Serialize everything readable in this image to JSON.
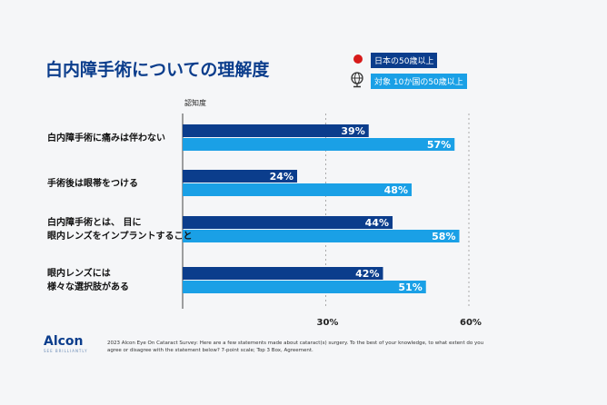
{
  "chart_data": {
    "type": "bar",
    "orientation": "horizontal",
    "title": "白内障手術についての理解度",
    "xlabel": "認知度",
    "xlim": [
      0,
      60
    ],
    "ticks": [
      "30%",
      "60%"
    ],
    "tick_values": [
      30,
      60
    ],
    "grid": "dashed at ticks",
    "categories": [
      "白内障手術に痛みは伴わない",
      "手術後は眼帯をつける",
      "白内障手術とは、 目に\n眼内レンズをインプラントすること",
      "眼内レンズには\n様々な選択肢がある"
    ],
    "series": [
      {
        "name": "日本の50歳以上",
        "color": "#0b3d8c",
        "values": [
          39,
          24,
          44,
          42
        ]
      },
      {
        "name": "対象 10か国の50歳以上",
        "color": "#1aa0e6",
        "values": [
          57,
          48,
          58,
          51
        ]
      }
    ],
    "legend": "top-right",
    "legend_icons": [
      "japan-flag-icon",
      "globe-icon"
    ]
  },
  "footer": {
    "logo": "Alcon",
    "tagline": "SEE BRILLIANTLY",
    "note": "2023 Alcon Eye On Cataract Survey: Here are a few statements made about cataract(s) surgery. To the best of your knowledge, to what extent do you agree or disagree with the statement below? 7-point scale; Top 3 Box, Agreement."
  }
}
